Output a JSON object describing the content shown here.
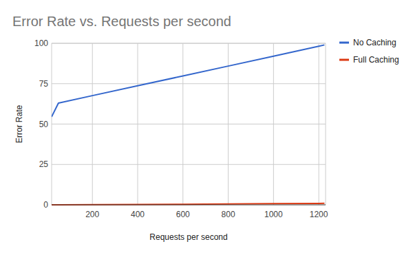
{
  "chart_data": {
    "type": "line",
    "title": "Error Rate vs. Requests per second",
    "x_label": "Requests per second",
    "y_label": "Error Rate",
    "x": [
      20,
      50,
      200,
      400,
      600,
      800,
      1000,
      1200,
      1225
    ],
    "series": [
      {
        "name": "No Caching",
        "color": "#3366cc",
        "values": [
          54.5,
          63,
          67.6,
          73.7,
          79.8,
          85.9,
          92,
          98.2,
          99
        ]
      },
      {
        "name": "Full Caching",
        "color": "#dc3912",
        "values": [
          0,
          0,
          0.1,
          0.2,
          0.35,
          0.5,
          0.7,
          0.9,
          1
        ]
      }
    ],
    "xlim": [
      20,
      1230
    ],
    "xticks": [
      200,
      400,
      600,
      800,
      1000,
      1200
    ],
    "ylim": [
      0,
      100
    ],
    "yticks": [
      0,
      25,
      50,
      75,
      100
    ],
    "grid": true,
    "legend": "top-right"
  }
}
